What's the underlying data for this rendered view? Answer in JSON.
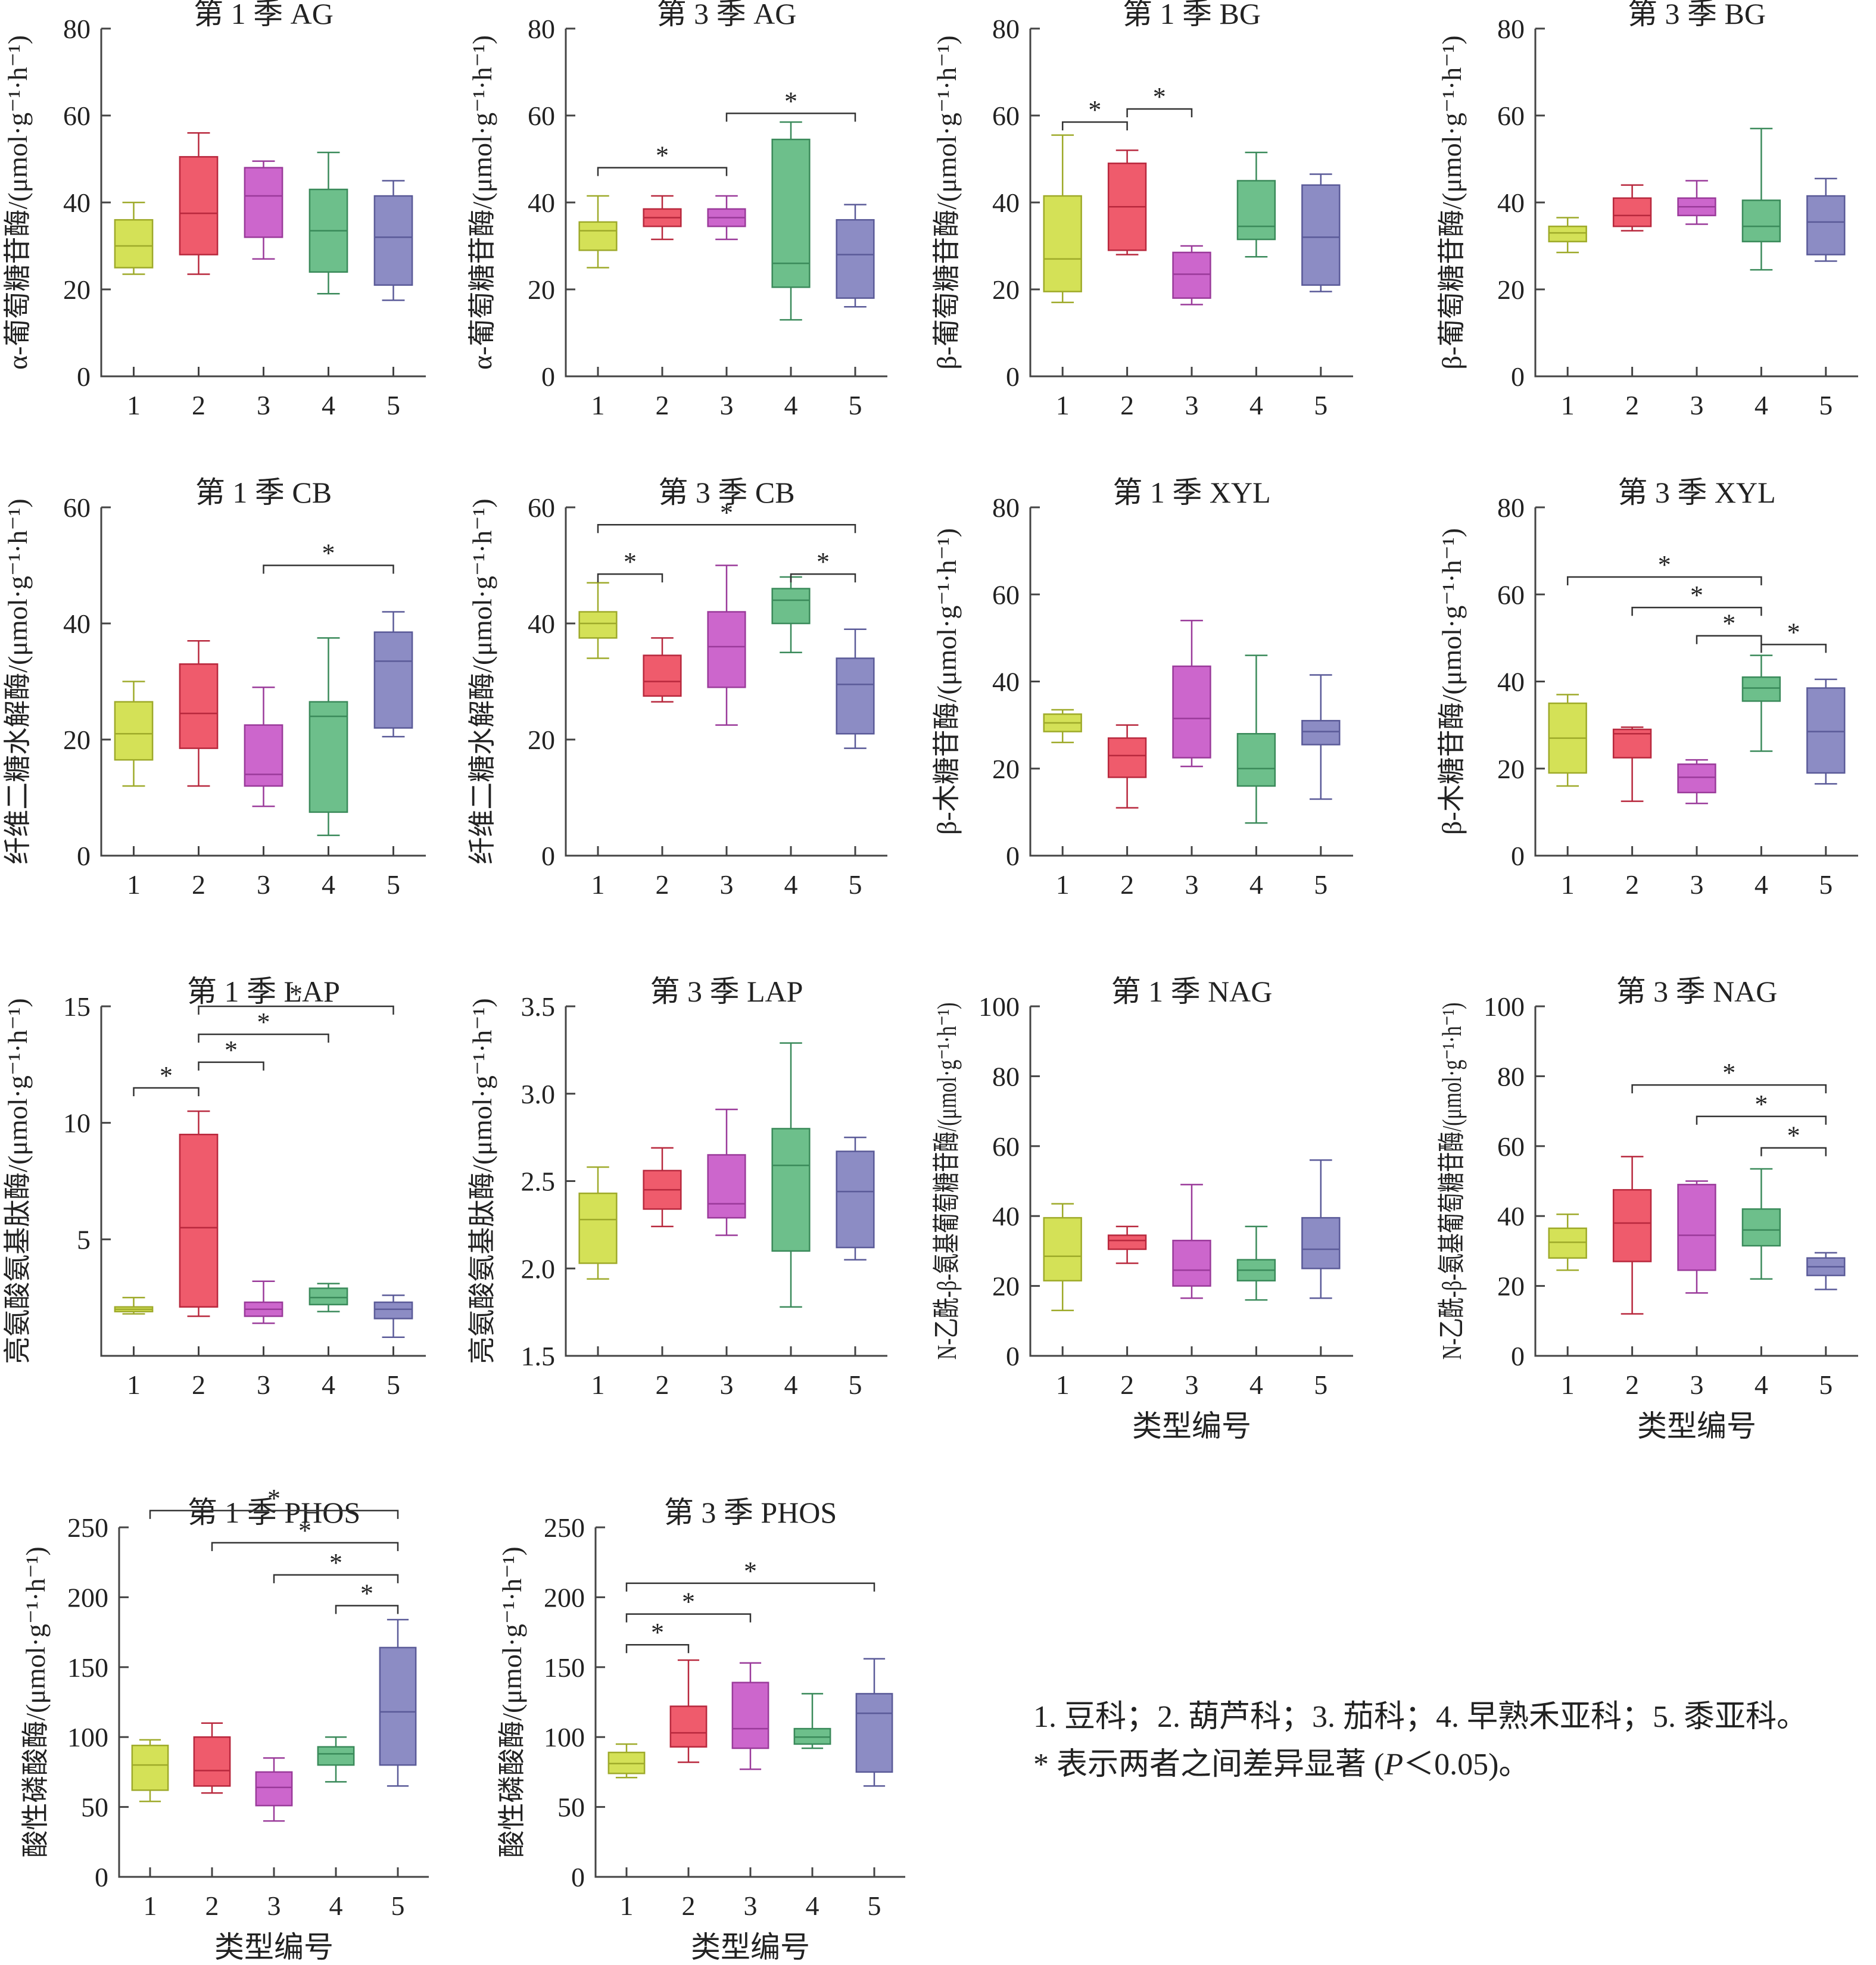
{
  "colors": [
    "#d4e157",
    "#ef5b6c",
    "#cc66cc",
    "#6dbf8b",
    "#8c8cc4"
  ],
  "colors_stroke": [
    "#9eaa2a",
    "#b8283d",
    "#9a3a9a",
    "#3a8a5a",
    "#5a5a98"
  ],
  "xlabel": "类型编号",
  "notes": {
    "legend": "1. 豆科；2. 葫芦科；3. 茄科；4. 早熟禾亚科；5. 黍亚科。",
    "sig_prefix": "* 表示两者之间差异显著 (",
    "sig_p": "P",
    "sig_suffix": "＜0.05)。"
  },
  "chart_data": [
    {
      "type": "box",
      "title": "第 1 季 AG",
      "ylabel": "α-葡萄糖苷酶/(μmol·g⁻¹·h⁻¹)",
      "ylim": [
        0,
        80
      ],
      "yticks": [
        "0",
        "20",
        "40",
        "60",
        "80"
      ],
      "categories": [
        "1",
        "2",
        "3",
        "4",
        "5"
      ],
      "xlabel": "",
      "boxes": [
        [
          23.5,
          25,
          30,
          36,
          40
        ],
        [
          23.5,
          28,
          37.5,
          50.5,
          56
        ],
        [
          27,
          32,
          41.5,
          48,
          49.5
        ],
        [
          19,
          24,
          33.5,
          43,
          51.5
        ],
        [
          17.5,
          21,
          32,
          41.5,
          45
        ]
      ],
      "sig": []
    },
    {
      "type": "box",
      "title": "第 3 季 AG",
      "ylabel": "α-葡萄糖苷酶/(μmol·g⁻¹·h⁻¹)",
      "ylim": [
        0,
        80
      ],
      "yticks": [
        "0",
        "20",
        "40",
        "60",
        "80"
      ],
      "categories": [
        "1",
        "2",
        "3",
        "4",
        "5"
      ],
      "xlabel": "",
      "boxes": [
        [
          25,
          29,
          33.5,
          35.5,
          41.5
        ],
        [
          31.5,
          34.5,
          36.5,
          38.5,
          41.5
        ],
        [
          31.5,
          34.5,
          36.5,
          38.5,
          41.5
        ],
        [
          13,
          20.5,
          26,
          54.5,
          58.5
        ],
        [
          16,
          18,
          28,
          36,
          39.5
        ]
      ],
      "sig": [
        [
          1,
          3,
          48
        ],
        [
          3,
          5,
          60.5
        ]
      ]
    },
    {
      "type": "box",
      "title": "第 1 季 BG",
      "ylabel": "β-葡萄糖苷酶/(μmol·g⁻¹·h⁻¹)",
      "ylim": [
        0,
        80
      ],
      "yticks": [
        "0",
        "20",
        "40",
        "60",
        "80"
      ],
      "categories": [
        "1",
        "2",
        "3",
        "4",
        "5"
      ],
      "xlabel": "",
      "boxes": [
        [
          17,
          19.5,
          27,
          41.5,
          55.5
        ],
        [
          28,
          29,
          39,
          49,
          52
        ],
        [
          16.5,
          18,
          23.5,
          28.5,
          30
        ],
        [
          27.5,
          31.5,
          34.5,
          45,
          51.5
        ],
        [
          19.5,
          21,
          32,
          44,
          46.5
        ]
      ],
      "sig": [
        [
          1,
          2,
          58.5
        ],
        [
          2,
          3,
          61.5
        ]
      ]
    },
    {
      "type": "box",
      "title": "第 3 季 BG",
      "ylabel": "β-葡萄糖苷酶/(μmol·g⁻¹·h⁻¹)",
      "ylim": [
        0,
        80
      ],
      "yticks": [
        "0",
        "20",
        "40",
        "60",
        "80"
      ],
      "categories": [
        "1",
        "2",
        "3",
        "4",
        "5"
      ],
      "xlabel": "",
      "boxes": [
        [
          28.5,
          31,
          33,
          34.5,
          36.5
        ],
        [
          33.5,
          34.5,
          37,
          41,
          44
        ],
        [
          35,
          37,
          39,
          41,
          45
        ],
        [
          24.5,
          31,
          34.5,
          40.5,
          57
        ],
        [
          26.5,
          28,
          35.5,
          41.5,
          45.5
        ]
      ],
      "sig": []
    },
    {
      "type": "box",
      "title": "第 1 季 CB",
      "ylabel": "纤维二糖水解酶/(μmol·g⁻¹·h⁻¹)",
      "ylim": [
        0,
        60
      ],
      "yticks": [
        "0",
        "20",
        "40",
        "60"
      ],
      "categories": [
        "1",
        "2",
        "3",
        "4",
        "5"
      ],
      "xlabel": "",
      "boxes": [
        [
          12,
          16.5,
          21,
          26.5,
          30
        ],
        [
          12,
          18.5,
          24.5,
          33,
          37
        ],
        [
          8.5,
          12,
          14,
          22.5,
          29
        ],
        [
          3.5,
          7.5,
          24,
          26.5,
          37.5
        ],
        [
          20.5,
          22,
          33.5,
          38.5,
          42
        ]
      ],
      "sig": [
        [
          3,
          5,
          50
        ]
      ]
    },
    {
      "type": "box",
      "title": "第 3 季 CB",
      "ylabel": "纤维二糖水解酶/(μmol·g⁻¹·h⁻¹)",
      "ylim": [
        0,
        60
      ],
      "yticks": [
        "0",
        "20",
        "40",
        "60"
      ],
      "categories": [
        "1",
        "2",
        "3",
        "4",
        "5"
      ],
      "xlabel": "",
      "boxes": [
        [
          34,
          37.5,
          40,
          42,
          47
        ],
        [
          26.5,
          27.5,
          30,
          34.5,
          37.5
        ],
        [
          22.5,
          29,
          36,
          42,
          50
        ],
        [
          35,
          40,
          44,
          46,
          48
        ],
        [
          18.5,
          21,
          29.5,
          34,
          39
        ]
      ],
      "sig": [
        [
          1,
          5,
          57
        ],
        [
          1,
          2,
          48.5
        ],
        [
          4,
          5,
          48.5
        ]
      ]
    },
    {
      "type": "box",
      "title": "第 1 季 XYL",
      "ylabel": "β-木糖苷酶/(μmol·g⁻¹·h⁻¹)",
      "ylim": [
        0,
        80
      ],
      "yticks": [
        "0",
        "20",
        "40",
        "60",
        "80"
      ],
      "categories": [
        "1",
        "2",
        "3",
        "4",
        "5"
      ],
      "xlabel": "",
      "boxes": [
        [
          26,
          28.5,
          30.5,
          32.5,
          33.5
        ],
        [
          11,
          18,
          23,
          27,
          30
        ],
        [
          20.5,
          22.5,
          31.5,
          43.5,
          54
        ],
        [
          7.5,
          16,
          20,
          28,
          46
        ],
        [
          13,
          25.5,
          28.5,
          31,
          41.5
        ]
      ],
      "sig": []
    },
    {
      "type": "box",
      "title": "第 3 季 XYL",
      "ylabel": "β-木糖苷酶/(μmol·g⁻¹·h⁻¹)",
      "ylim": [
        0,
        80
      ],
      "yticks": [
        "0",
        "20",
        "40",
        "60",
        "80"
      ],
      "categories": [
        "1",
        "2",
        "3",
        "4",
        "5"
      ],
      "xlabel": "",
      "boxes": [
        [
          16,
          19,
          27,
          35,
          37
        ],
        [
          12.5,
          22.5,
          28,
          29,
          29.5
        ],
        [
          12,
          14.5,
          18,
          21,
          22
        ],
        [
          24,
          35.5,
          38.5,
          41,
          46
        ],
        [
          16.5,
          19,
          28.5,
          38.5,
          40.5
        ]
      ],
      "sig": [
        [
          1,
          4,
          64
        ],
        [
          2,
          4,
          57
        ],
        [
          3,
          4,
          50.5
        ],
        [
          4,
          5,
          48.5
        ]
      ]
    },
    {
      "type": "box",
      "title": "第 1 季 LAP",
      "ylabel": "亮氨酸氨基肽酶/(μmol·g⁻¹·h⁻¹)",
      "ylim": [
        0,
        15
      ],
      "yticks": [
        "5",
        "10",
        "15"
      ],
      "categories": [
        "1",
        "2",
        "3",
        "4",
        "5"
      ],
      "xlabel": "",
      "boxes": [
        [
          1.8,
          1.9,
          2.0,
          2.1,
          2.5
        ],
        [
          1.7,
          2.1,
          5.5,
          9.5,
          10.5
        ],
        [
          1.4,
          1.7,
          2.0,
          2.3,
          3.2
        ],
        [
          1.9,
          2.2,
          2.5,
          2.9,
          3.1
        ],
        [
          0.8,
          1.6,
          2.0,
          2.3,
          2.6
        ]
      ],
      "sig": [
        [
          2,
          5,
          15.0
        ],
        [
          2,
          4,
          13.8
        ],
        [
          2,
          3,
          12.6
        ],
        [
          1,
          2,
          11.5
        ]
      ]
    },
    {
      "type": "box",
      "title": "第 3 季 LAP",
      "ylabel": "亮氨酸氨基肽酶/(μmol·g⁻¹·h⁻¹)",
      "ylim": [
        1.5,
        3.5
      ],
      "yticks": [
        "1.5",
        "2.0",
        "2.5",
        "3.0",
        "3.5"
      ],
      "categories": [
        "1",
        "2",
        "3",
        "4",
        "5"
      ],
      "xlabel": "",
      "boxes": [
        [
          1.94,
          2.03,
          2.28,
          2.43,
          2.58
        ],
        [
          2.24,
          2.34,
          2.45,
          2.56,
          2.69
        ],
        [
          2.19,
          2.29,
          2.37,
          2.65,
          2.91
        ],
        [
          1.78,
          2.1,
          2.59,
          2.8,
          3.29
        ],
        [
          2.05,
          2.12,
          2.44,
          2.67,
          2.75
        ]
      ],
      "sig": []
    },
    {
      "type": "box",
      "title": "第 1 季 NAG",
      "ylabel": "N-乙酰-β-氨基葡萄糖苷酶/(μmol·g⁻¹·h⁻¹)",
      "ylim": [
        0,
        100
      ],
      "yticks": [
        "0",
        "20",
        "40",
        "60",
        "80",
        "100"
      ],
      "categories": [
        "1",
        "2",
        "3",
        "4",
        "5"
      ],
      "xlabel": "类型编号",
      "boxes": [
        [
          13,
          21.5,
          28.5,
          39.5,
          43.5
        ],
        [
          26.5,
          30.5,
          33,
          34.5,
          37
        ],
        [
          16.5,
          20,
          24.5,
          33,
          49
        ],
        [
          16,
          21.5,
          24.5,
          27.5,
          37
        ],
        [
          16.5,
          25,
          30.5,
          39.5,
          56
        ]
      ],
      "sig": []
    },
    {
      "type": "box",
      "title": "第 3 季 NAG",
      "ylabel": "N-乙酰-β-氨基葡萄糖苷酶/(μmol·g⁻¹·h⁻¹)",
      "ylim": [
        0,
        100
      ],
      "yticks": [
        "0",
        "20",
        "40",
        "60",
        "80",
        "100"
      ],
      "categories": [
        "1",
        "2",
        "3",
        "4",
        "5"
      ],
      "xlabel": "类型编号",
      "boxes": [
        [
          24.5,
          28,
          32.5,
          36.5,
          40.5
        ],
        [
          12,
          27,
          38,
          47.5,
          57
        ],
        [
          18,
          24.5,
          34.5,
          49,
          50
        ],
        [
          22,
          31.5,
          36,
          42,
          53.5
        ],
        [
          19,
          23,
          25.5,
          28,
          29.5
        ]
      ],
      "sig": [
        [
          2,
          5,
          77.5
        ],
        [
          3,
          5,
          68.5
        ],
        [
          4,
          5,
          59.5
        ]
      ]
    },
    {
      "type": "box",
      "title": "第 1 季 PHOS",
      "ylabel": "酸性磷酸酶/(μmol·g⁻¹·h⁻¹)",
      "ylim": [
        0,
        250
      ],
      "yticks": [
        "0",
        "50",
        "100",
        "150",
        "200",
        "250"
      ],
      "categories": [
        "1",
        "2",
        "3",
        "4",
        "5"
      ],
      "xlabel": "类型编号",
      "boxes": [
        [
          54,
          62,
          80,
          94,
          98
        ],
        [
          60,
          65,
          76,
          100,
          110
        ],
        [
          40,
          51,
          64,
          75,
          85
        ],
        [
          68,
          80,
          88,
          93,
          100
        ],
        [
          65,
          80,
          118,
          164,
          184
        ]
      ],
      "sig": [
        [
          1,
          5,
          262
        ],
        [
          2,
          5,
          239
        ],
        [
          3,
          5,
          216
        ],
        [
          4,
          5,
          194
        ]
      ]
    },
    {
      "type": "box",
      "title": "第 3 季 PHOS",
      "ylabel": "酸性磷酸酶/(μmol·g⁻¹·h⁻¹)",
      "ylim": [
        0,
        250
      ],
      "yticks": [
        "0",
        "50",
        "100",
        "150",
        "200",
        "250"
      ],
      "categories": [
        "1",
        "2",
        "3",
        "4",
        "5"
      ],
      "xlabel": "类型编号",
      "boxes": [
        [
          71,
          74,
          81,
          89,
          95
        ],
        [
          82,
          93,
          103,
          122,
          155
        ],
        [
          77,
          92,
          106,
          139,
          153
        ],
        [
          92,
          95,
          100,
          106,
          131
        ],
        [
          65,
          75,
          117,
          131,
          156
        ]
      ],
      "sig": [
        [
          1,
          5,
          210
        ],
        [
          1,
          3,
          188
        ],
        [
          1,
          2,
          166
        ]
      ]
    }
  ]
}
